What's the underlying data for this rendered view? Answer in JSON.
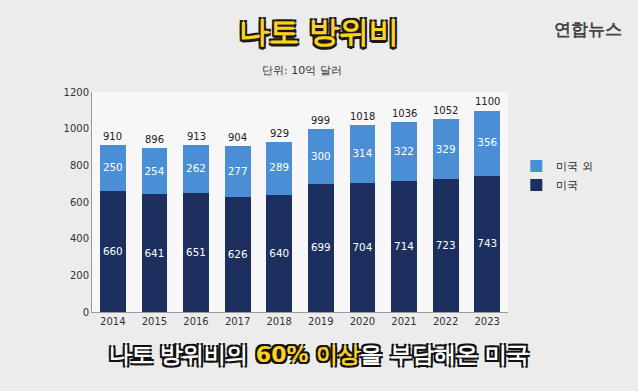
{
  "chart_data": {
    "type": "bar",
    "title": "나토 방위비",
    "subtitle": "단위: 10억 달러",
    "source": "연합뉴스",
    "caption": [
      "나토 방위비의 ",
      "60% 이상",
      "을 부담해온 미국"
    ],
    "categories": [
      "2014",
      "2015",
      "2016",
      "2017",
      "2018",
      "2019",
      "2020",
      "2021",
      "2022",
      "2023"
    ],
    "series": [
      {
        "name": "미국",
        "color": "#1c2f5f",
        "values": [
          660,
          641,
          651,
          626,
          640,
          699,
          704,
          714,
          723,
          743
        ]
      },
      {
        "name": "미국 외",
        "color": "#4a8fd6",
        "values": [
          250,
          254,
          262,
          277,
          289,
          300,
          314,
          322,
          329,
          356
        ]
      }
    ],
    "totals": [
      910,
      896,
      913,
      904,
      929,
      999,
      1018,
      1036,
      1052,
      1100
    ],
    "stacked": true,
    "data_labels": true,
    "legend": "right",
    "grid": false,
    "ylim": [
      0,
      1200
    ],
    "yticks": [
      0,
      200,
      400,
      600,
      800,
      1000,
      1200
    ]
  }
}
